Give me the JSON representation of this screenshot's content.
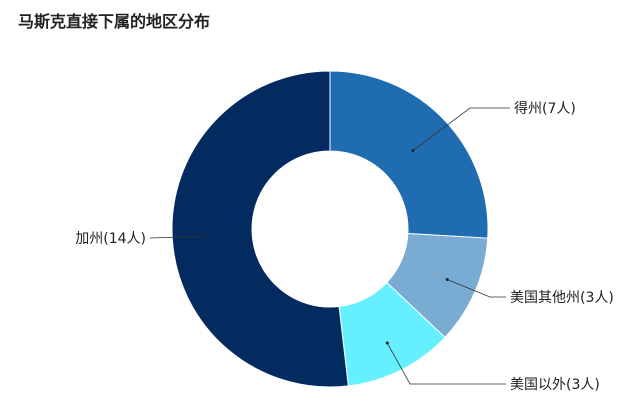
{
  "chart_data": {
    "type": "pie",
    "variant": "donut",
    "title": "马斯克直接下属的地区分布",
    "categories": [
      "得州(7人)",
      "美国其他州(3人)",
      "美国以外(3人)",
      "加州(14人)"
    ],
    "values": [
      7,
      3,
      3,
      14
    ],
    "colors": [
      "#1f6cb0",
      "#7aabd3",
      "#66f0ff",
      "#032b60"
    ],
    "start_angle": "12 o'clock",
    "direction": "clockwise",
    "legend": "none (external callout labels)"
  }
}
